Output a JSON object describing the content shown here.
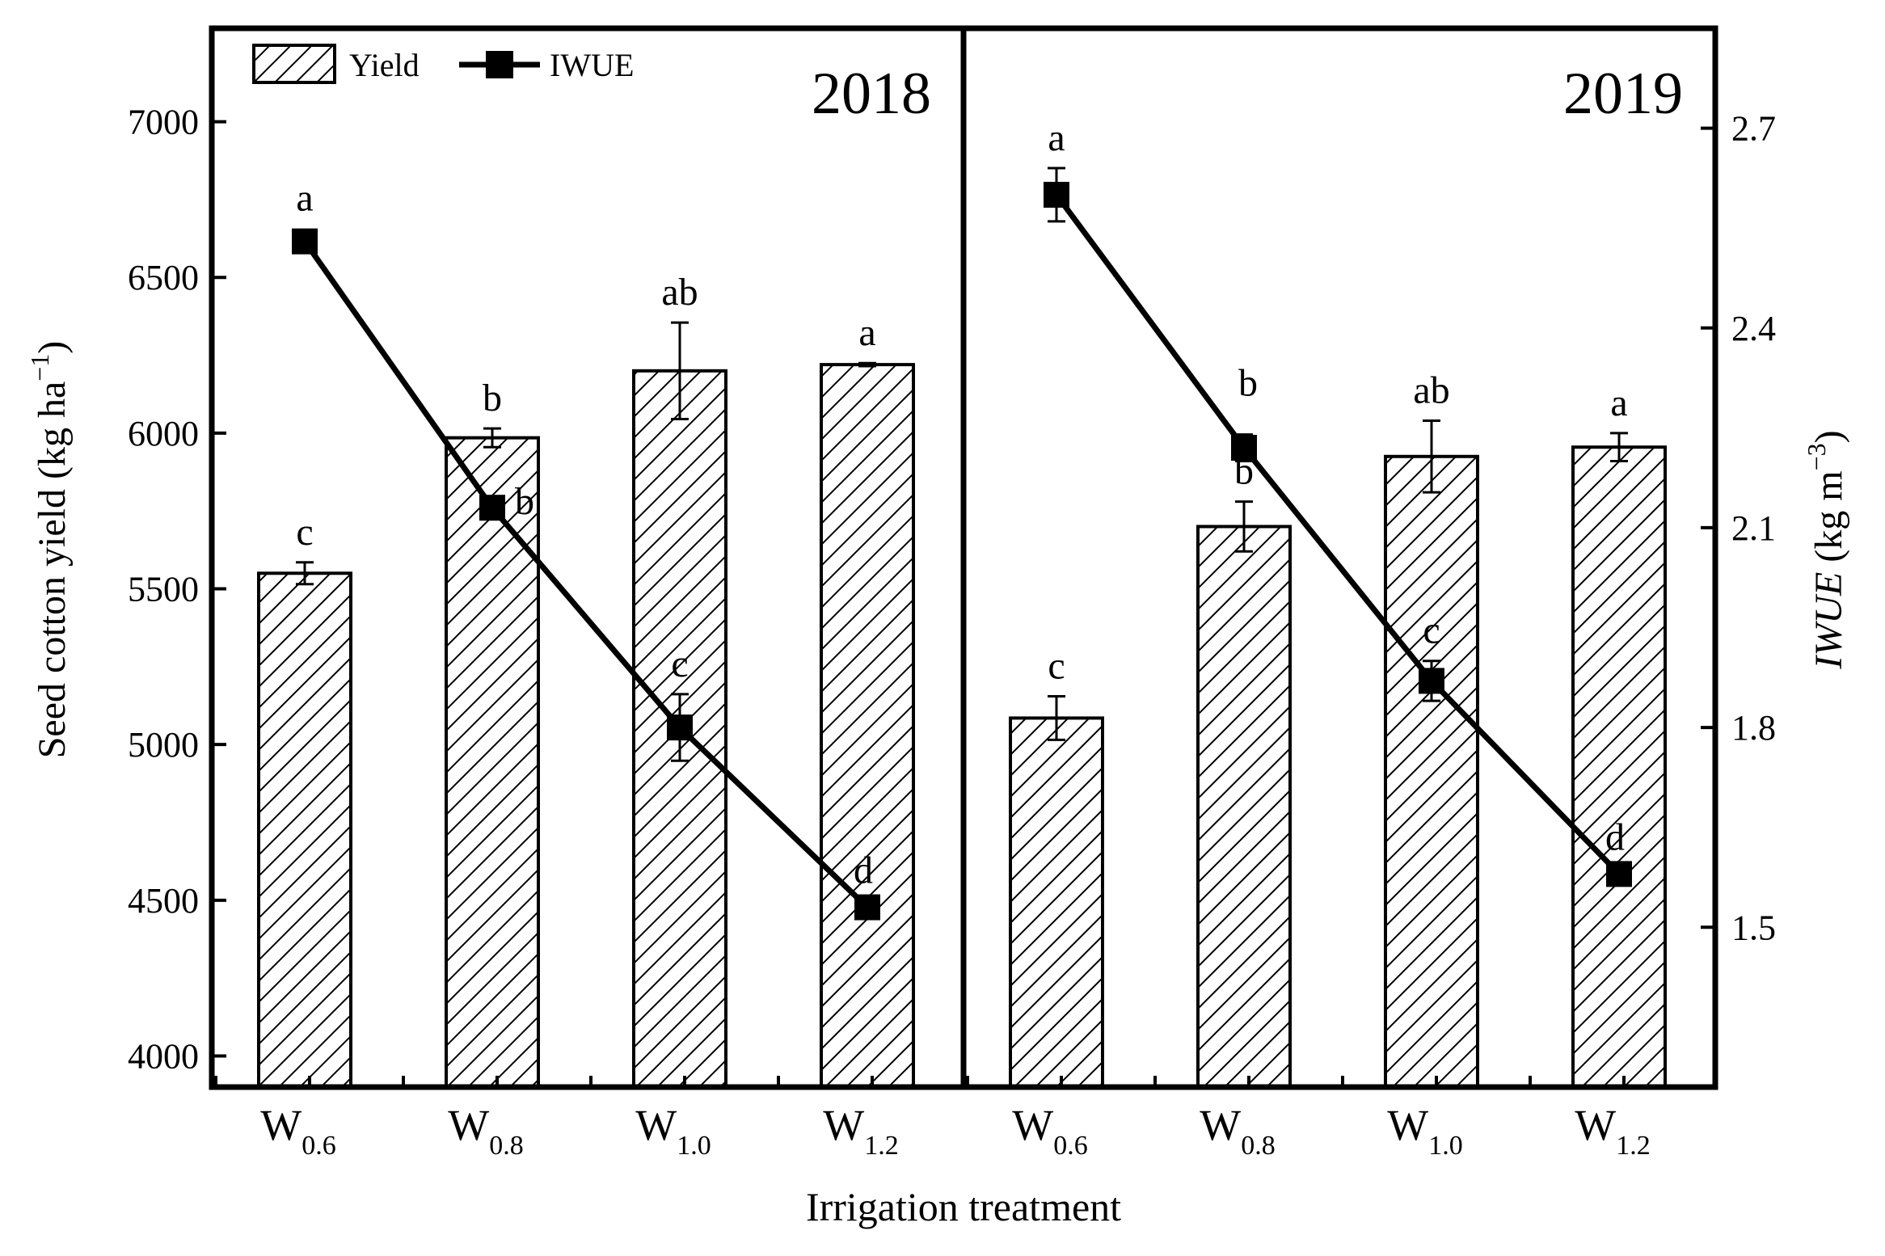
{
  "chart_data": {
    "type": "bar",
    "xlabel": "Irrigation treatment",
    "ylabel": "Seed cotton yield (kg ha",
    "ylabel_sup": "−1",
    "ylabel_close": ")",
    "y2label_italic": "IWUE",
    "y2label": " (kg m",
    "y2label_sup": "−3",
    "y2label_close": ")",
    "ylim": [
      3900,
      7300
    ],
    "y2lim": [
      1.26,
      2.85
    ],
    "yticks": [
      4000,
      4500,
      5000,
      5500,
      6000,
      6500,
      7000
    ],
    "y2ticks": [
      1.5,
      1.8,
      2.1,
      2.4,
      2.7
    ],
    "y2tick_labels": [
      "1.5",
      "1.8",
      "2.1",
      "2.4",
      "2.7"
    ],
    "legend": {
      "position": "top-left",
      "bar_label": "Yield",
      "line_label": "IWUE"
    },
    "categories": [
      {
        "base": "W",
        "sub": "0.6"
      },
      {
        "base": "W",
        "sub": "0.8"
      },
      {
        "base": "W",
        "sub": "1.0"
      },
      {
        "base": "W",
        "sub": "1.2"
      }
    ],
    "panels": [
      {
        "title": "2018",
        "yield": [
          5550,
          5985,
          6200,
          6220
        ],
        "yield_err": [
          35,
          30,
          155,
          5
        ],
        "yield_letters": [
          "c",
          "b",
          "ab",
          "a"
        ],
        "iwue": [
          2.53,
          2.13,
          1.8,
          1.53
        ],
        "iwue_err": [
          0,
          0,
          0.05,
          0
        ],
        "iwue_letters": [
          "a",
          "b",
          "c",
          "d"
        ]
      },
      {
        "title": "2019",
        "yield": [
          5085,
          5700,
          5925,
          5955
        ],
        "yield_err": [
          70,
          80,
          115,
          45
        ],
        "yield_letters": [
          "c",
          "b",
          "ab",
          "a"
        ],
        "iwue": [
          2.6,
          2.22,
          1.87,
          1.58
        ],
        "iwue_err": [
          0.04,
          0.02,
          0.03,
          0
        ],
        "iwue_letters": [
          "a",
          "b",
          "c",
          "d"
        ]
      }
    ]
  }
}
